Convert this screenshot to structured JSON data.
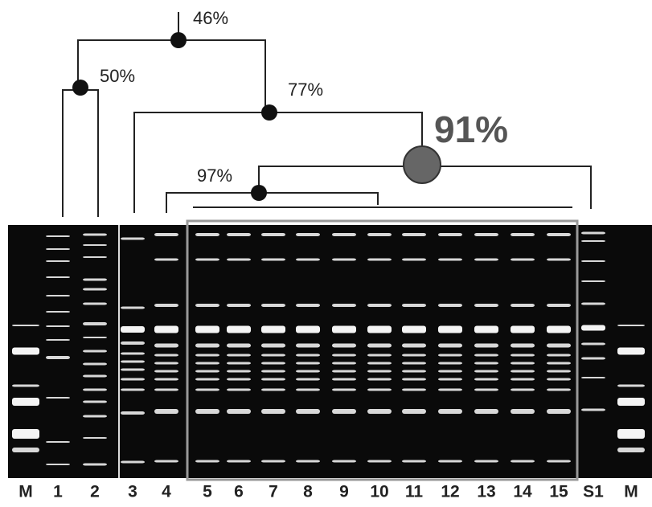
{
  "nodes": [
    {
      "label": "46%"
    },
    {
      "label": "50%"
    },
    {
      "label": "77%"
    },
    {
      "label": "91%"
    },
    {
      "label": "97%"
    }
  ],
  "lanes": [
    "M",
    "1",
    "2",
    "3",
    "4",
    "5",
    "6",
    "7",
    "8",
    "9",
    "10",
    "11",
    "12",
    "13",
    "14",
    "15",
    "S1",
    "M"
  ]
}
